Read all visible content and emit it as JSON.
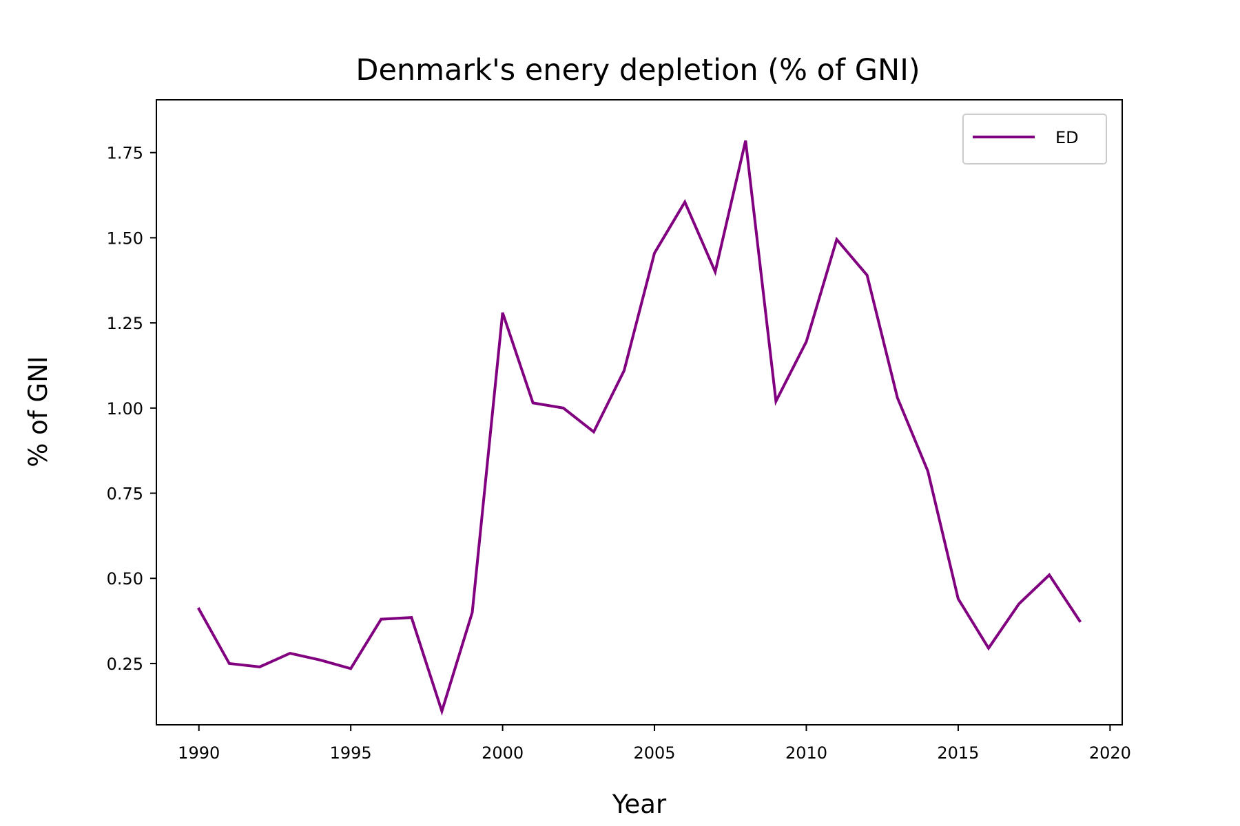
{
  "chart_data": {
    "type": "line",
    "title": "Denmark's enery depletion (% of GNI)",
    "xlabel": "Year",
    "ylabel": "% of GNI",
    "xlim": [
      1988.6,
      2020.4
    ],
    "ylim": [
      0.07,
      1.905
    ],
    "xticks": [
      1990,
      1995,
      2000,
      2005,
      2010,
      2015,
      2020
    ],
    "yticks": [
      0.25,
      0.5,
      0.75,
      1.0,
      1.25,
      1.5,
      1.75
    ],
    "ytick_labels": [
      "0.25",
      "0.50",
      "0.75",
      "1.00",
      "1.25",
      "1.50",
      "1.75"
    ],
    "grid": false,
    "legend_position": "top-right",
    "x": [
      1990,
      1991,
      1992,
      1993,
      1994,
      1995,
      1996,
      1997,
      1998,
      1999,
      2000,
      2001,
      2002,
      2003,
      2004,
      2005,
      2006,
      2007,
      2008,
      2009,
      2010,
      2011,
      2012,
      2013,
      2014,
      2015,
      2016,
      2017,
      2018,
      2019
    ],
    "series": [
      {
        "name": "ED",
        "color": "#800080",
        "values": [
          0.41,
          0.25,
          0.24,
          0.28,
          0.26,
          0.235,
          0.38,
          0.385,
          0.11,
          0.4,
          1.28,
          1.015,
          1.0,
          0.93,
          1.11,
          1.455,
          1.605,
          1.4,
          1.785,
          1.02,
          1.195,
          1.495,
          1.39,
          1.03,
          0.815,
          0.44,
          0.295,
          0.425,
          0.51,
          0.375
        ]
      }
    ]
  }
}
